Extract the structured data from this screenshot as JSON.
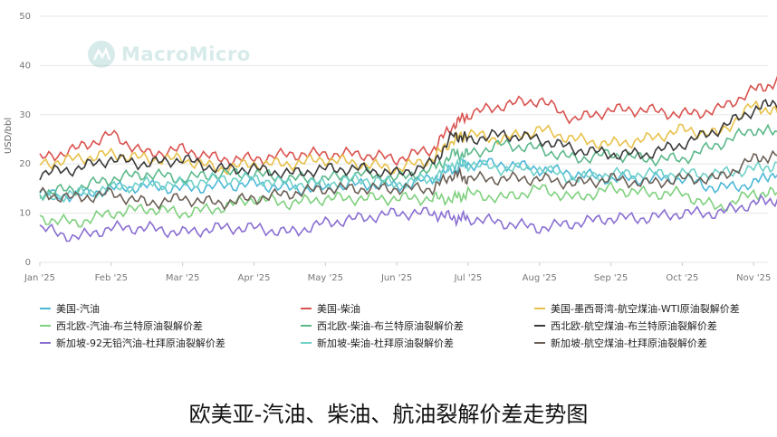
{
  "brand": "MacroMicro",
  "caption": "欧美亚-汽油、柴油、航油裂解价差走势图",
  "colors": {
    "us_gasoline": "#4db8d6",
    "us_diesel": "#d9534f",
    "us_jet_wti": "#e8c14a",
    "nwe_gasoline": "#7fd07f",
    "nwe_diesel": "#5cb88a",
    "nwe_jet": "#3a3a3a",
    "sg_gasoline": "#8a6fd1",
    "sg_diesel": "#6fd1c8",
    "sg_jet": "#6b5f55"
  },
  "chart_data": {
    "type": "line",
    "ylabel": "USD/bbl",
    "ylim": [
      0,
      50
    ],
    "yticks": [
      0,
      10,
      20,
      30,
      40,
      50
    ],
    "xticks": [
      "Jan '25",
      "Feb '25",
      "Mar '25",
      "Apr '25",
      "May '25",
      "Jun '25",
      "Jul '25",
      "Aug '25",
      "Sep '25",
      "Oct '25",
      "Nov '25"
    ],
    "x_months": [
      0,
      0.5,
      1,
      1.5,
      2,
      2.5,
      3,
      3.5,
      4,
      4.5,
      5,
      5.5,
      5.8,
      6,
      6.5,
      7,
      7.5,
      8,
      8.5,
      9,
      9.5,
      10,
      10.4
    ],
    "series": [
      {
        "name": "美国-汽油",
        "color_key": "us_gasoline",
        "values": [
          14,
          13.5,
          15,
          15.5,
          15,
          15.5,
          16,
          15,
          15,
          16,
          15.5,
          17,
          19,
          20,
          20,
          19,
          18,
          17,
          17,
          17,
          15,
          16,
          19
        ]
      },
      {
        "name": "美国-柴油",
        "color_key": "us_diesel",
        "values": [
          21,
          23,
          26,
          22,
          23,
          21,
          21,
          22,
          22,
          22,
          21,
          23,
          28,
          30,
          32,
          33,
          29,
          31,
          31,
          30,
          31,
          35,
          37
        ]
      },
      {
        "name": "美国-墨西哥湾-航空煤油-WTI原油裂解价差",
        "color_key": "us_jet_wti",
        "values": [
          20,
          21,
          22,
          21,
          21,
          19,
          20,
          20,
          21,
          20,
          19,
          21,
          25,
          26,
          25,
          27,
          25,
          24,
          25,
          27,
          26,
          32,
          30
        ]
      },
      {
        "name": "西北欧-汽油-布兰特原油裂解价差",
        "color_key": "nwe_gasoline",
        "values": [
          9,
          8,
          10,
          11,
          10,
          11,
          13,
          12,
          13,
          13,
          13,
          13,
          13,
          14,
          13,
          15,
          13,
          15,
          14,
          14,
          11,
          14,
          14
        ]
      },
      {
        "name": "西北欧-柴油-布兰特原油裂解价差",
        "color_key": "nwe_diesel",
        "values": [
          14,
          15,
          17,
          18,
          17,
          18,
          18,
          17,
          17,
          18,
          17,
          19,
          22,
          22,
          24,
          23,
          21,
          22,
          21,
          21,
          24,
          27,
          26
        ]
      },
      {
        "name": "西北欧-航空煤油-布兰特原油裂解价差",
        "color_key": "nwe_jet",
        "values": [
          18,
          19,
          21,
          20,
          21,
          19,
          19,
          18,
          19,
          19,
          18,
          20,
          26,
          25,
          26,
          25,
          23,
          22,
          22,
          24,
          27,
          31,
          33
        ]
      },
      {
        "name": "新加坡-92无铅汽油-杜拜原油裂解价差",
        "color_key": "sg_gasoline",
        "values": [
          7,
          5,
          7,
          7,
          6,
          7,
          7,
          6,
          8,
          9,
          10,
          10,
          9,
          9,
          8,
          7,
          8,
          9,
          9,
          10,
          10,
          12,
          13
        ]
      },
      {
        "name": "新加坡-柴油-杜拜原油裂解价差",
        "color_key": "sg_diesel",
        "values": [
          13,
          14,
          15,
          16,
          16,
          17,
          17,
          16,
          16,
          17,
          16,
          17,
          20,
          20,
          19,
          19,
          17,
          18,
          18,
          18,
          18,
          19,
          20
        ]
      },
      {
        "name": "新加坡-航空煤油-杜拜原油裂解价差",
        "color_key": "sg_jet",
        "values": [
          14,
          13,
          14,
          12,
          13,
          12,
          13,
          14,
          15,
          15,
          15,
          15,
          18,
          17,
          17,
          17,
          16,
          17,
          16,
          17,
          17,
          21,
          22
        ]
      }
    ]
  },
  "legend": [
    "美国-汽油",
    "美国-柴油",
    "美国-墨西哥湾-航空煤油-WTI原油裂解价差",
    "西北欧-汽油-布兰特原油裂解价差",
    "西北欧-柴油-布兰特原油裂解价差",
    "西北欧-航空煤油-布兰特原油裂解价差",
    "新加坡-92无铅汽油-杜拜原油裂解价差",
    "新加坡-柴油-杜拜原油裂解价差",
    "新加坡-航空煤油-杜拜原油裂解价差"
  ]
}
